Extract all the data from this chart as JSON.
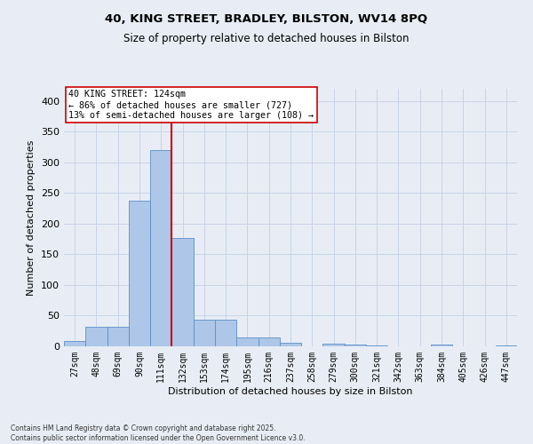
{
  "title_line1": "40, KING STREET, BRADLEY, BILSTON, WV14 8PQ",
  "title_line2": "Size of property relative to detached houses in Bilston",
  "xlabel": "Distribution of detached houses by size in Bilston",
  "ylabel": "Number of detached properties",
  "categories": [
    "27sqm",
    "48sqm",
    "69sqm",
    "90sqm",
    "111sqm",
    "132sqm",
    "153sqm",
    "174sqm",
    "195sqm",
    "216sqm",
    "237sqm",
    "258sqm",
    "279sqm",
    "300sqm",
    "321sqm",
    "342sqm",
    "363sqm",
    "384sqm",
    "405sqm",
    "426sqm",
    "447sqm"
  ],
  "values": [
    8,
    32,
    32,
    237,
    320,
    177,
    44,
    44,
    15,
    15,
    6,
    0,
    5,
    3,
    1,
    0,
    0,
    3,
    0,
    0,
    1
  ],
  "bar_color": "#aec6e8",
  "bar_edge_color": "#5b8fc9",
  "vline_color": "#cc0000",
  "vline_x": 4.5,
  "annotation_text": "40 KING STREET: 124sqm\n← 86% of detached houses are smaller (727)\n13% of semi-detached houses are larger (108) →",
  "annotation_box_color": "#ffffff",
  "annotation_box_edge": "#cc0000",
  "ylim": [
    0,
    420
  ],
  "yticks": [
    0,
    50,
    100,
    150,
    200,
    250,
    300,
    350,
    400
  ],
  "grid_color": "#c8d4e8",
  "bg_color": "#e8edf5",
  "footer": "Contains HM Land Registry data © Crown copyright and database right 2025.\nContains public sector information licensed under the Open Government Licence v3.0."
}
